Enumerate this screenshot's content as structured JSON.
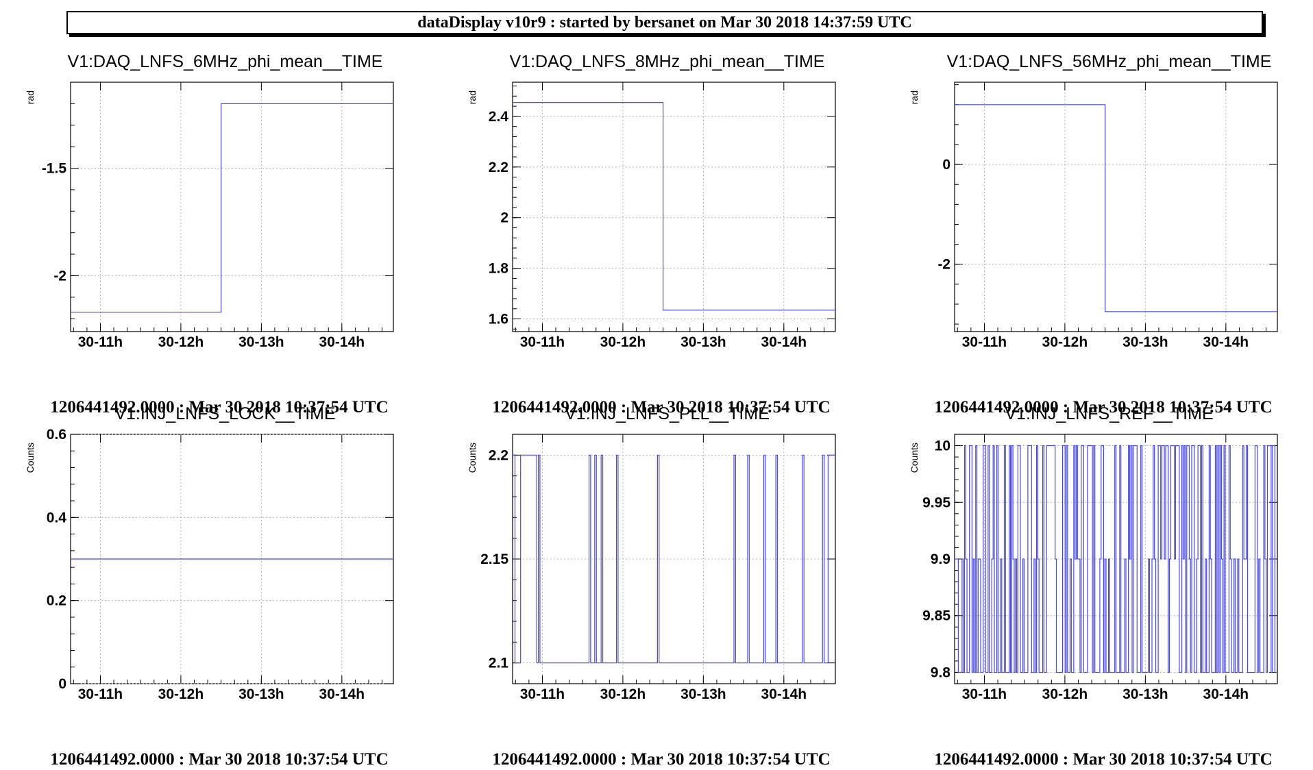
{
  "header": {
    "title": "dataDisplay v10r9 : started by bersanet on Mar 30 2018 14:37:59 UTC"
  },
  "colors": {
    "series": "#4848f0",
    "grid": "#b4b4b4",
    "axis": "#000000"
  },
  "chart_data": [
    {
      "type": "line",
      "title": "V1:DAQ_LNFS_6MHz_phi_mean__TIME",
      "ylabel": "rad",
      "xlabel": "",
      "footer": "1206441492.0000 : Mar 30 2018 10:37:54 UTC",
      "x_ticks": [
        "30-11h",
        "30-12h",
        "30-13h",
        "30-14h"
      ],
      "y_ticks": [
        -1.5,
        -2
      ],
      "ylim": [
        -2.26,
        -1.1
      ],
      "xlim": [
        10.63,
        14.64
      ],
      "grid": true,
      "series": [
        {
          "x": [
            10.63,
            12.5,
            12.5,
            14.64
          ],
          "values": [
            -2.17,
            -2.17,
            -1.2,
            -1.2
          ]
        }
      ]
    },
    {
      "type": "line",
      "title": "V1:DAQ_LNFS_8MHz_phi_mean__TIME",
      "ylabel": "rad",
      "xlabel": "",
      "footer": "1206441492.0000 : Mar 30 2018 10:37:54 UTC",
      "x_ticks": [
        "30-11h",
        "30-12h",
        "30-13h",
        "30-14h"
      ],
      "y_ticks": [
        2.4,
        2.2,
        2,
        1.8,
        1.6
      ],
      "ylim": [
        1.55,
        2.535
      ],
      "xlim": [
        10.63,
        14.64
      ],
      "grid": true,
      "series": [
        {
          "x": [
            10.63,
            12.5,
            12.5,
            14.64
          ],
          "values": [
            2.455,
            2.455,
            1.635,
            1.635
          ]
        }
      ]
    },
    {
      "type": "line",
      "title": "V1:DAQ_LNFS_56MHz_phi_mean__TIME",
      "ylabel": "rad",
      "xlabel": "",
      "footer": "1206441492.0000 : Mar 30 2018 10:37:54 UTC",
      "x_ticks": [
        "30-11h",
        "30-12h",
        "30-13h",
        "30-14h"
      ],
      "y_ticks": [
        0,
        -2
      ],
      "ylim": [
        -3.35,
        1.65
      ],
      "xlim": [
        10.63,
        14.64
      ],
      "grid": true,
      "series": [
        {
          "x": [
            10.63,
            12.5,
            12.5,
            14.64
          ],
          "values": [
            1.2,
            1.2,
            -2.95,
            -2.95
          ]
        }
      ]
    },
    {
      "type": "line",
      "title": "V1:INJ_LNFS_LOCK__TIME",
      "ylabel": "Counts",
      "xlabel": "",
      "footer": "1206441492.0000 : Mar 30 2018 10:37:54 UTC",
      "x_ticks": [
        "30-11h",
        "30-12h",
        "30-13h",
        "30-14h"
      ],
      "y_ticks": [
        0.6,
        0.4,
        0.2,
        0
      ],
      "ylim": [
        0,
        0.6
      ],
      "xlim": [
        10.63,
        14.64
      ],
      "grid": true,
      "series": [
        {
          "x": [
            10.63,
            14.64
          ],
          "values": [
            0.3,
            0.3
          ]
        }
      ]
    },
    {
      "type": "line",
      "title": "V1:INJ_LNFS_PLL__TIME",
      "ylabel": "Counts",
      "xlabel": "",
      "footer": "1206441492.0000 : Mar 30 2018 10:37:54 UTC",
      "x_ticks": [
        "30-11h",
        "30-12h",
        "30-13h",
        "30-14h"
      ],
      "y_ticks": [
        2.2,
        2.15,
        2.1
      ],
      "ylim": [
        2.09,
        2.21
      ],
      "xlim": [
        10.63,
        14.64
      ],
      "grid": true,
      "high": 2.2,
      "low": 2.1,
      "dips": [
        10.66,
        10.73,
        10.93,
        10.95,
        10.97,
        11.58,
        11.6,
        11.65,
        11.67,
        11.73,
        11.75,
        11.92,
        11.94,
        12.43,
        12.45,
        13.38,
        13.4,
        13.55,
        13.57,
        13.75,
        13.77,
        13.9,
        13.92,
        14.23,
        14.25,
        14.48,
        14.5,
        14.55,
        14.57
      ]
    },
    {
      "type": "line",
      "title": "V1:INJ_LNFS_REF__TIME",
      "ylabel": "Counts",
      "xlabel": "",
      "footer": "1206441492.0000 : Mar 30 2018 10:37:54 UTC",
      "x_ticks": [
        "30-11h",
        "30-12h",
        "30-13h",
        "30-14h"
      ],
      "y_ticks": [
        10,
        9.95,
        9.9,
        9.85,
        9.8
      ],
      "ylim": [
        9.79,
        10.01
      ],
      "xlim": [
        10.63,
        14.64
      ],
      "grid": true,
      "levels": [
        9.8,
        9.9,
        10.0
      ],
      "note": "signal switches rapidly between 9.8, 9.9 and 10.0 throughout the whole interval"
    }
  ]
}
